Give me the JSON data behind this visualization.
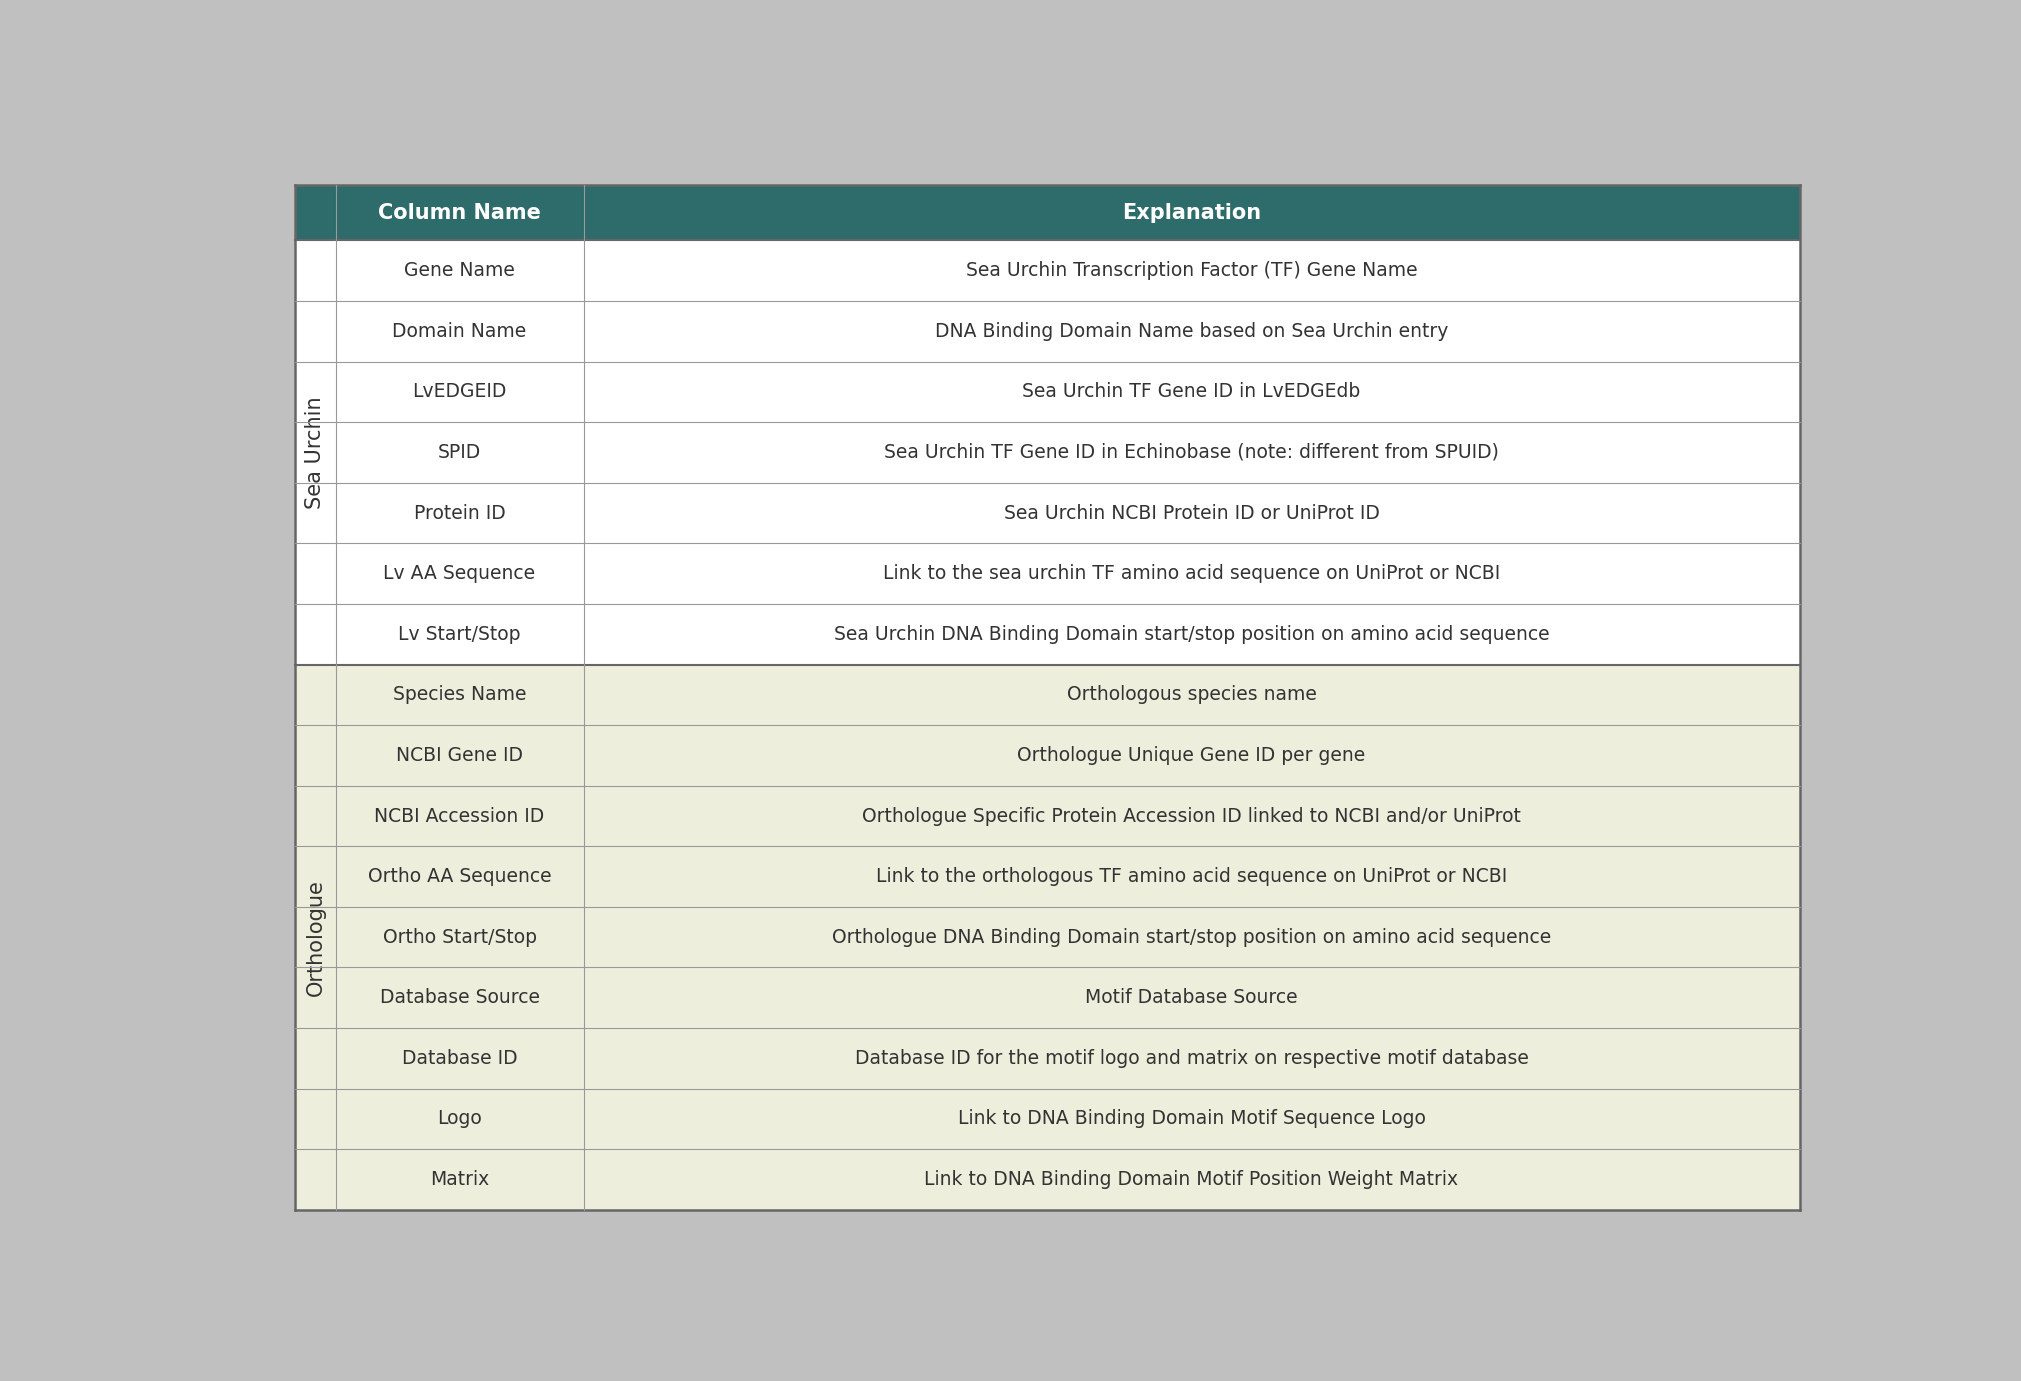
{
  "header": [
    "Column Name",
    "Explanation"
  ],
  "sea_urchin_rows": [
    [
      "Gene Name",
      "Sea Urchin Transcription Factor (TF) Gene Name"
    ],
    [
      "Domain Name",
      "DNA Binding Domain Name based on Sea Urchin entry"
    ],
    [
      "LvEDGEID",
      "Sea Urchin TF Gene ID in LvEDGEdb"
    ],
    [
      "SPID",
      "Sea Urchin TF Gene ID in Echinobase (note: different from SPUID)"
    ],
    [
      "Protein ID",
      "Sea Urchin NCBI Protein ID or UniProt ID"
    ],
    [
      "Lv AA Sequence",
      "Link to the sea urchin TF amino acid sequence on UniProt or NCBI"
    ],
    [
      "Lv Start/Stop",
      "Sea Urchin DNA Binding Domain start/stop position on amino acid sequence"
    ]
  ],
  "orthologue_rows": [
    [
      "Species Name",
      "Orthologous species name"
    ],
    [
      "NCBI Gene ID",
      "Orthologue Unique Gene ID per gene"
    ],
    [
      "NCBI Accession ID",
      "Orthologue Specific Protein Accession ID linked to NCBI and/or UniProt"
    ],
    [
      "Ortho AA Sequence",
      "Link to the orthologous TF amino acid sequence on UniProt or NCBI"
    ],
    [
      "Ortho Start/Stop",
      "Orthologue DNA Binding Domain start/stop position on amino acid sequence"
    ],
    [
      "Database Source",
      "Motif Database Source"
    ],
    [
      "Database ID",
      "Database ID for the motif logo and matrix on respective motif database"
    ],
    [
      "Logo",
      "Link to DNA Binding Domain Motif Sequence Logo"
    ],
    [
      "Matrix",
      "Link to DNA Binding Domain Motif Position Weight Matrix"
    ]
  ],
  "header_bg": "#2e6b6b",
  "header_text_color": "#ffffff",
  "sea_urchin_bg": "#ffffff",
  "orthologue_bg": "#eeeedd",
  "outer_bg": "#c0c0c0",
  "grid_color": "#999999",
  "side_label_sea_urchin": "Sea Urchin",
  "side_label_orthologue": "Orthologue",
  "outer_border_color": "#666666",
  "text_color": "#333333",
  "cell_fontsize": 13.5,
  "header_fontsize": 15,
  "side_label_fontsize": 15
}
